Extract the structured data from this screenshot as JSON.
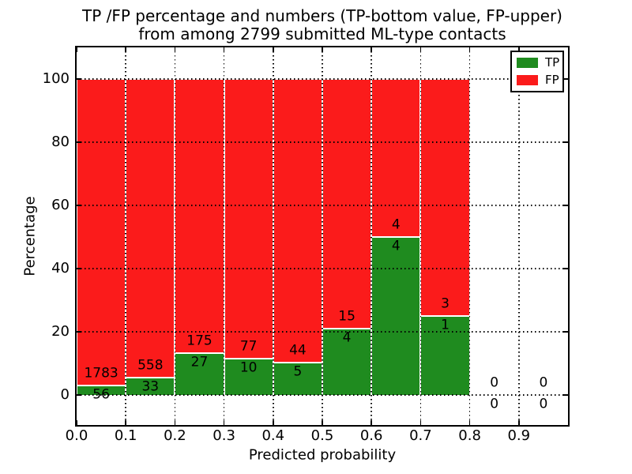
{
  "title": {
    "line1": "TP /FP percentage and numbers (TP-bottom value, FP-upper)",
    "line2": "from among 2799 submitted ML-type contacts"
  },
  "axes": {
    "xlabel": "Predicted probability",
    "ylabel": "Percentage",
    "xticks": [
      "0.0",
      "0.1",
      "0.2",
      "0.3",
      "0.4",
      "0.5",
      "0.6",
      "0.7",
      "0.8",
      "0.9"
    ],
    "yticks": [
      "0",
      "20",
      "40",
      "60",
      "80",
      "100"
    ]
  },
  "legend": [
    {
      "label": "TP",
      "color": "#1f8b1f"
    },
    {
      "label": "FP",
      "color": "#fb1b1b"
    }
  ],
  "colors": {
    "tp_green": "#1f8b1f",
    "fp_red": "#fb1b1b",
    "grid": "#000000",
    "background": "#ffffff"
  },
  "chart_data": {
    "type": "bar",
    "stacked": true,
    "title": "TP /FP percentage and numbers (TP-bottom value, FP-upper) from among 2799 submitted ML-type contacts",
    "xlabel": "Predicted probability",
    "ylabel": "Percentage",
    "categories": [
      "0.0-0.1",
      "0.1-0.2",
      "0.2-0.3",
      "0.3-0.4",
      "0.4-0.5",
      "0.5-0.6",
      "0.6-0.7",
      "0.7-0.8",
      "0.8-0.9",
      "0.9-1.0"
    ],
    "bin_width": 0.1,
    "series": [
      {
        "name": "TP",
        "color": "#1f8b1f",
        "counts": [
          56,
          33,
          27,
          10,
          5,
          4,
          4,
          1,
          0,
          0
        ],
        "percent": [
          3.05,
          5.58,
          13.37,
          11.49,
          10.2,
          21.05,
          50.0,
          25.0,
          0,
          0
        ]
      },
      {
        "name": "FP",
        "color": "#fb1b1b",
        "counts": [
          1783,
          558,
          175,
          77,
          44,
          15,
          4,
          3,
          0,
          0
        ],
        "percent": [
          96.95,
          94.42,
          86.63,
          88.51,
          89.8,
          78.95,
          50.0,
          75.0,
          0,
          0
        ]
      }
    ],
    "total_contacts": 2799,
    "xlim": [
      0.0,
      1.0
    ],
    "ylim": [
      -9.5,
      110
    ],
    "grid": "dotted",
    "legend_position": "upper right"
  }
}
